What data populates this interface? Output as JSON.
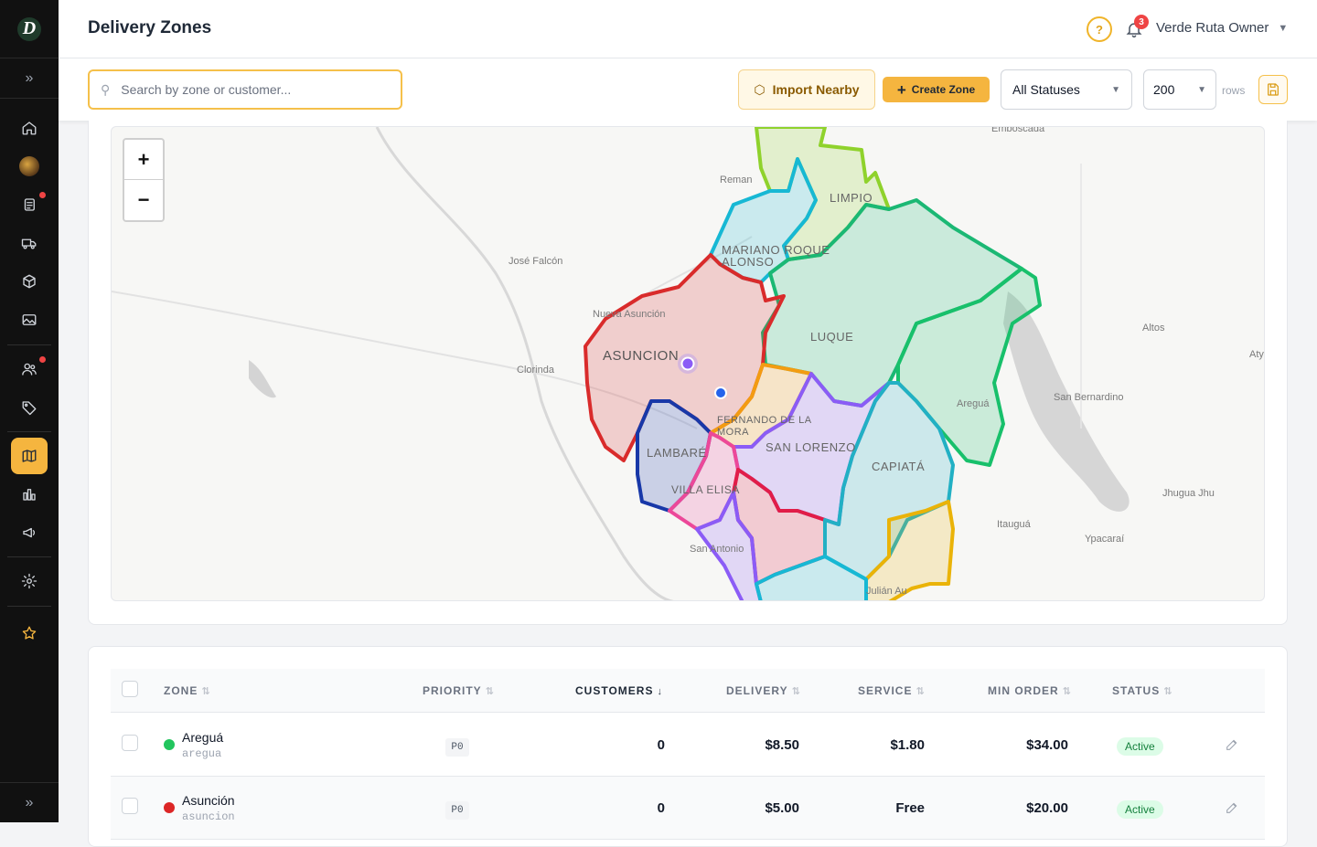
{
  "header": {
    "title": "Delivery Zones",
    "help_icon": "?",
    "notifications": "3",
    "user": "Verde Ruta Owner"
  },
  "sidebar": {
    "logo": "D",
    "items": [
      "home",
      "avatar",
      "orders",
      "delivery",
      "products",
      "media",
      "customers",
      "tags",
      "zones",
      "analytics",
      "campaigns",
      "settings",
      "favorites"
    ]
  },
  "toolbar": {
    "search_placeholder": "Search by zone or customer...",
    "import_label": "Import Nearby",
    "create_label": "Create Zone",
    "status_filter": "All Statuses",
    "rows_value": "200",
    "rows_label": "rows"
  },
  "map": {
    "zoom_in": "+",
    "zoom_out": "−",
    "place_labels": {
      "emboscada": "Emboscada",
      "reman": "Reman",
      "jose_falcon": "José Falcón",
      "nueva_asuncion": "Nueva Asunción",
      "clorinda": "Clorinda",
      "altos": "Altos",
      "aty": "Aty",
      "san_bernardino": "San Bernardino",
      "aregua": "Areguá",
      "itaugua": "Itauguá",
      "ypacarai": "Ypacaraí",
      "jhugua_jhu": "Jhugua Jhu",
      "san_antonio": "San Antonio",
      "julian": "Julián Au"
    },
    "zone_labels": {
      "limpio": "LIMPIO",
      "mariano": "MARIANO ROQUE ALONSO",
      "luque": "LUQUE",
      "asuncion": "ASUNCION",
      "fernando": "FERNANDO DE LA MORA",
      "san_lorenzo": "SAN LORENZO",
      "capiata": "CAPIATÁ",
      "lambare": "LAMBARÉ",
      "villa_elisa": "VILLA ELISA"
    },
    "colors": {
      "asuncion": "#d92b2b",
      "luque": "#1bb874",
      "limpio": "#8fd22c",
      "mariano": "#17b8d4",
      "aregua": "#18c06b",
      "lambare": "#1838a8",
      "fernando": "#f39c12",
      "san_lorenzo": "#8b5cf6",
      "capiata": "#22b0c4",
      "villa_elisa": "#ec4899",
      "nemby": "#e11d48",
      "itaugua_zone": "#eab308"
    }
  },
  "table": {
    "columns": {
      "zone": "ZONE",
      "priority": "PRIORITY",
      "customers": "CUSTOMERS",
      "delivery": "DELIVERY",
      "service": "SERVICE",
      "min_order": "MIN ORDER",
      "status": "STATUS"
    },
    "sort_icons": {
      "unsorted": "⇅",
      "desc": "↓"
    },
    "rows": [
      {
        "name": "Areguá",
        "slug": "aregua",
        "color": "#22c55e",
        "priority": "P0",
        "customers": "0",
        "delivery": "$8.50",
        "service": "$1.80",
        "min_order": "$34.00",
        "status": "Active"
      },
      {
        "name": "Asunción",
        "slug": "asuncion",
        "color": "#dc2626",
        "priority": "P0",
        "customers": "0",
        "delivery": "$5.00",
        "service": "Free",
        "min_order": "$20.00",
        "status": "Active"
      }
    ]
  }
}
